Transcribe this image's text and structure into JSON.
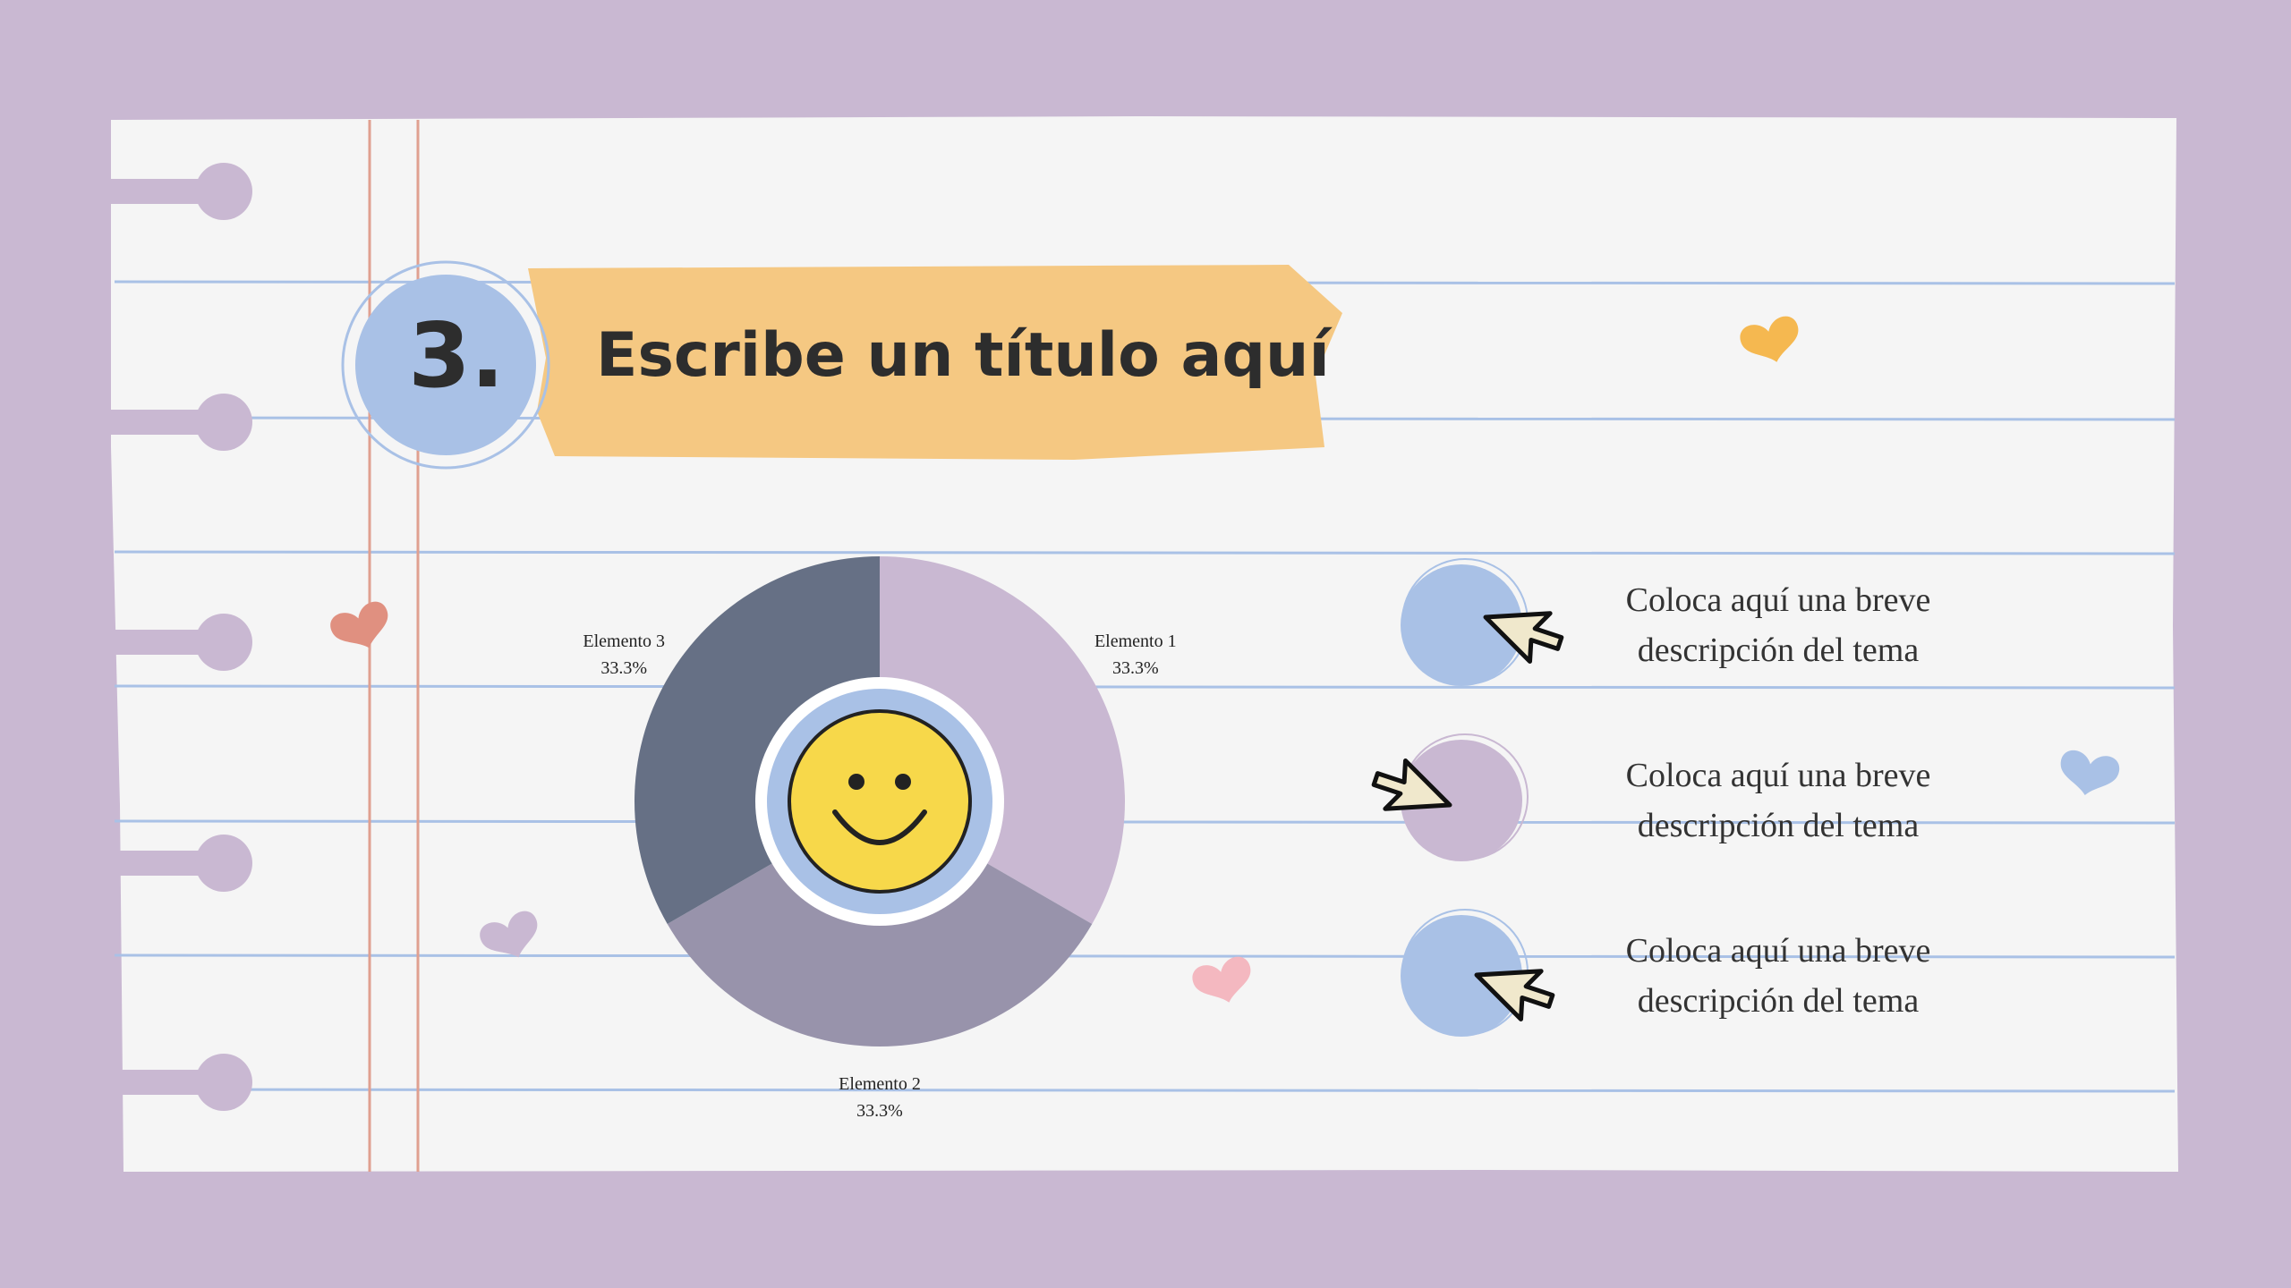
{
  "header": {
    "number": "3.",
    "title": "Escribe un título aquí"
  },
  "chart_data": {
    "type": "pie",
    "donut": true,
    "categories": [
      "Elemento 1",
      "Elemento 2",
      "Elemento 3"
    ],
    "values": [
      33.3,
      33.3,
      33.3
    ],
    "value_labels": [
      "33.3%",
      "33.3%",
      "33.3%"
    ],
    "colors": [
      "#c9b8d2",
      "#9893ab",
      "#667085"
    ]
  },
  "items": [
    {
      "lines": [
        "Coloca aquí una breve",
        "descripción del tema"
      ]
    },
    {
      "lines": [
        "Coloca aquí una breve",
        "descripción del tema"
      ]
    },
    {
      "lines": [
        "Coloca aquí una breve",
        "descripción del tema"
      ]
    }
  ]
}
